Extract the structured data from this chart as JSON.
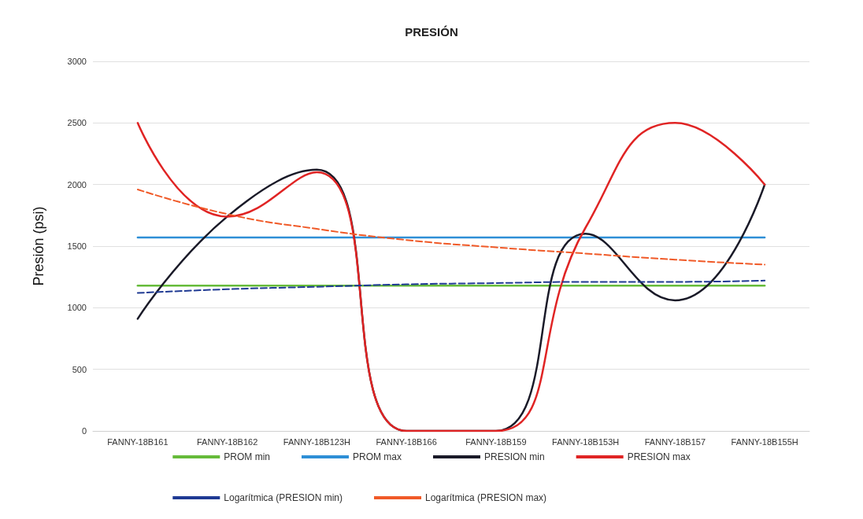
{
  "chart_data": {
    "type": "line",
    "title": "PRESIÓN",
    "ylabel": "Presión (psi)",
    "categories": [
      "FANNY-18B161",
      "FANNY-18B162",
      "FANNY-18B123H",
      "FANNY-18B166",
      "FANNY-18B159",
      "FANNY-18B153H",
      "FANNY-18B157",
      "FANNY-18B155H"
    ],
    "series": [
      {
        "name": "PROM min",
        "color": "#66bb3a",
        "values": [
          1180,
          1180,
          1180,
          1180,
          1180,
          1180,
          1180,
          1180
        ]
      },
      {
        "name": "PROM max",
        "color": "#2e8fd6",
        "values": [
          1570,
          1570,
          1570,
          1570,
          1570,
          1570,
          1570,
          1570
        ]
      },
      {
        "name": "PRESION min",
        "color": "#1a1a28",
        "values": [
          910,
          1740,
          2120,
          0,
          0,
          1600,
          1060,
          2000
        ]
      },
      {
        "name": "PRESION max",
        "color": "#e02424",
        "values": [
          2500,
          1740,
          2100,
          0,
          0,
          1650,
          2500,
          2000
        ]
      },
      {
        "name": "Logarítmica (PRESION min)",
        "color": "#1f3a93",
        "line_style": "dashed",
        "values": [
          1120,
          1150,
          1170,
          1190,
          1200,
          1210,
          1210,
          1220
        ]
      },
      {
        "name": "Logarítmica (PRESION max)",
        "color": "#f05a28",
        "line_style": "dashed",
        "values": [
          1960,
          1760,
          1640,
          1550,
          1490,
          1440,
          1390,
          1350
        ]
      }
    ],
    "ylim": [
      0,
      3000
    ],
    "yticks": [
      0,
      500,
      1000,
      1500,
      2000,
      2500,
      3000
    ],
    "grid": "y",
    "legend": "bottom",
    "marker": "none"
  }
}
